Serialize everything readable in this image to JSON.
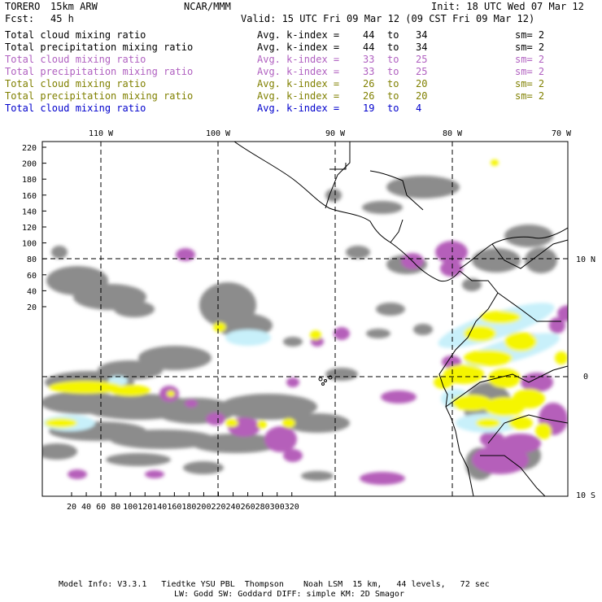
{
  "header": {
    "model": "TORERO",
    "resolution": "15km ARW",
    "org": "NCAR/MMM",
    "init": "Init: 18 UTC Wed 07 Mar 12",
    "fcst_label": "Fcst:",
    "fcst_value": "45 h",
    "valid": "Valid: 15 UTC Fri 09 Mar 12 (09 CST Fri 09 Mar 12)"
  },
  "legend": [
    {
      "name": "Total cloud mixing ratio",
      "stat": "Avg. k-index =",
      "from": "44",
      "to": "34",
      "sm": "sm= 2",
      "color": "#000000"
    },
    {
      "name": "Total precipitation mixing ratio",
      "stat": "Avg. k-index =",
      "from": "44",
      "to": "34",
      "sm": "sm= 2",
      "color": "#000000"
    },
    {
      "name": "Total cloud mixing ratio",
      "stat": "Avg. k-index =",
      "from": "33",
      "to": "25",
      "sm": "sm= 2",
      "color": "#b060c0"
    },
    {
      "name": "Total precipitation mixing ratio",
      "stat": "Avg. k-index =",
      "from": "33",
      "to": "25",
      "sm": "sm= 2",
      "color": "#b060c0"
    },
    {
      "name": "Total cloud mixing ratio",
      "stat": "Avg. k-index =",
      "from": "26",
      "to": "20",
      "sm": "sm= 2",
      "color": "#808000"
    },
    {
      "name": "Total precipitation mixing ratio",
      "stat": "Avg. k-index =",
      "from": "26",
      "to": "20",
      "sm": "sm= 2",
      "color": "#808000"
    },
    {
      "name": "Total cloud mixing ratio",
      "stat": "Avg. k-index =",
      "from": "19",
      "to": "4",
      "sm": "",
      "color": "#0000cc"
    }
  ],
  "to_word": "to",
  "map": {
    "top_ticks": [
      "110 W",
      "100 W",
      "90 W",
      "80 W",
      "70 W"
    ],
    "right_ticks": [
      "10 N",
      "0",
      "10 S"
    ],
    "left_ticks": [
      "220",
      "200",
      "180",
      "160",
      "140",
      "120",
      "100",
      "80",
      "60",
      "40",
      "20"
    ],
    "bottom_ticks": [
      "20",
      "40",
      "60",
      "80",
      "100",
      "120",
      "140",
      "160",
      "180",
      "200",
      "220",
      "240",
      "260",
      "280",
      "300",
      "320"
    ],
    "colors": {
      "cloud_gray": "#8c8c8c",
      "purple": "#b55fba",
      "yellow": "#f5f500",
      "light_blue": "#c8f0fa",
      "coast": "#000000"
    }
  },
  "footer": {
    "line1": "Model Info: V3.3.1   Tiedtke YSU PBL  Thompson    Noah LSM  15 km,   44 levels,   72 sec",
    "line2": "LW: Godd SW: Goddard DIFF: simple KM: 2D Smagor"
  }
}
